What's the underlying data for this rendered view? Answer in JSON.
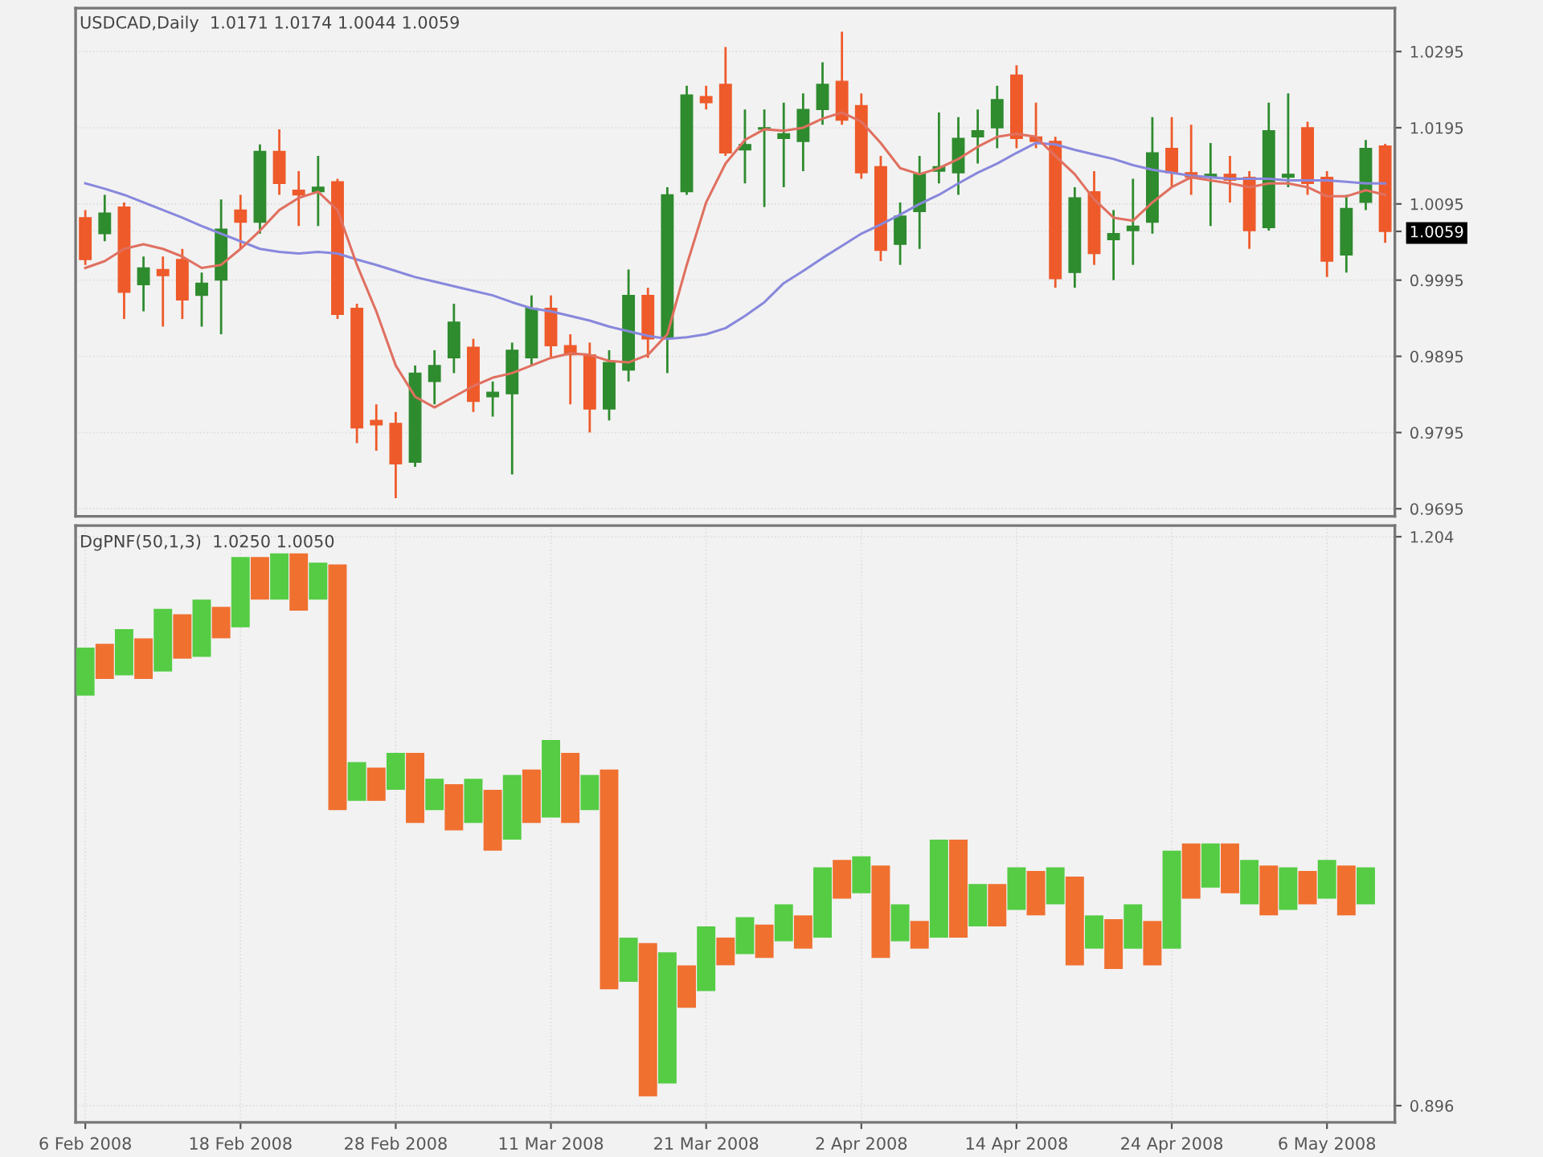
{
  "chart_data": [
    {
      "type": "candlestick",
      "title": "USDCAD,Daily  1.0171 1.0174 1.0044 1.0059",
      "categories": [
        null,
        null,
        null,
        null,
        null,
        null,
        null,
        null,
        null,
        null,
        null,
        null,
        null,
        null,
        null,
        null,
        null,
        null,
        null,
        null,
        null,
        null,
        null,
        null,
        null,
        null,
        null,
        null,
        null,
        null,
        null,
        null,
        null,
        null,
        null,
        null,
        null,
        null,
        null,
        null,
        null,
        null,
        null,
        null,
        null,
        null,
        null,
        null,
        null,
        null,
        null,
        null,
        null,
        null,
        null,
        null,
        null,
        null,
        null,
        null,
        null,
        null,
        null,
        null,
        null,
        null,
        null,
        null
      ],
      "ohlc": [
        [
          1.0077,
          1.0087,
          1.0015,
          1.0022
        ],
        [
          1.0056,
          1.0107,
          1.0046,
          1.0083
        ],
        [
          1.0091,
          1.0097,
          0.9944,
          0.9979
        ],
        [
          0.9989,
          1.0026,
          0.9954,
          1.0011
        ],
        [
          1.0009,
          1.0026,
          0.9934,
          1.0001
        ],
        [
          1.0022,
          1.0036,
          0.9944,
          0.9969
        ],
        [
          0.9975,
          1.0005,
          0.9934,
          0.9991
        ],
        [
          0.9995,
          1.0101,
          0.9924,
          1.0062
        ],
        [
          1.0087,
          1.0107,
          1.0036,
          1.0071
        ],
        [
          1.0071,
          1.0173,
          1.0056,
          1.0164
        ],
        [
          1.0164,
          1.0193,
          1.0107,
          1.0122
        ],
        [
          1.0113,
          1.0138,
          1.0066,
          1.0107
        ],
        [
          1.0111,
          1.0158,
          1.0066,
          1.0117
        ],
        [
          1.0124,
          1.0128,
          0.9944,
          0.995
        ],
        [
          0.9958,
          0.9964,
          0.9781,
          0.9801
        ],
        [
          0.9811,
          0.9832,
          0.9771,
          0.9805
        ],
        [
          0.9807,
          0.9822,
          0.9709,
          0.9754
        ],
        [
          0.9756,
          0.9883,
          0.975,
          0.9873
        ],
        [
          0.9862,
          0.9903,
          0.9832,
          0.9883
        ],
        [
          0.9893,
          0.9964,
          0.9873,
          0.994
        ],
        [
          0.9907,
          0.9918,
          0.9822,
          0.9836
        ],
        [
          0.9842,
          0.9862,
          0.9816,
          0.9848
        ],
        [
          0.9846,
          0.9913,
          0.974,
          0.9903
        ],
        [
          0.9893,
          0.9975,
          0.9883,
          0.9958
        ],
        [
          0.9958,
          0.9975,
          0.9893,
          0.9909
        ],
        [
          0.9909,
          0.9924,
          0.9832,
          0.9897
        ],
        [
          0.9897,
          0.9913,
          0.9795,
          0.9826
        ],
        [
          0.9826,
          0.9903,
          0.9811,
          0.9887
        ],
        [
          0.9877,
          1.0009,
          0.9862,
          0.9975
        ],
        [
          0.9975,
          0.9985,
          0.9893,
          0.9918
        ],
        [
          0.992,
          1.0117,
          0.9873,
          1.0107
        ],
        [
          1.0111,
          1.025,
          1.0107,
          1.0238
        ],
        [
          1.0236,
          1.025,
          1.0219,
          1.0228
        ],
        [
          1.0252,
          1.0301,
          1.0158,
          1.0162
        ],
        [
          1.0166,
          1.0219,
          1.0122,
          1.0173
        ],
        [
          1.0193,
          1.0219,
          1.0091,
          1.0195
        ],
        [
          1.0181,
          1.0228,
          1.0117,
          1.0187
        ],
        [
          1.0177,
          1.024,
          1.0138,
          1.0219
        ],
        [
          1.0219,
          1.0281,
          1.0199,
          1.0252
        ],
        [
          1.0256,
          1.0321,
          1.0199,
          1.0205
        ],
        [
          1.0224,
          1.024,
          1.0128,
          1.0136
        ],
        [
          1.0144,
          1.0158,
          1.002,
          1.0034
        ],
        [
          1.0042,
          1.0097,
          1.0015,
          1.0079
        ],
        [
          1.0085,
          1.0158,
          1.0036,
          1.0134
        ],
        [
          1.0138,
          1.0215,
          1.0122,
          1.0144
        ],
        [
          1.0136,
          1.0209,
          1.0107,
          1.0181
        ],
        [
          1.0183,
          1.0219,
          1.0148,
          1.0191
        ],
        [
          1.0195,
          1.025,
          1.0168,
          1.0232
        ],
        [
          1.0264,
          1.0277,
          1.0168,
          1.0181
        ],
        [
          1.0183,
          1.0228,
          1.0168,
          1.0177
        ],
        [
          1.0177,
          1.0183,
          0.9985,
          0.9997
        ],
        [
          1.0005,
          1.0117,
          0.9985,
          1.0103
        ],
        [
          1.0111,
          1.0138,
          1.0015,
          1.003
        ],
        [
          1.0048,
          1.0087,
          0.9995,
          1.0056
        ],
        [
          1.006,
          1.0128,
          1.0015,
          1.0066
        ],
        [
          1.0071,
          1.0209,
          1.0056,
          1.0162
        ],
        [
          1.0168,
          1.0209,
          1.0117,
          1.0136
        ],
        [
          1.0136,
          1.0199,
          1.0107,
          1.013
        ],
        [
          1.013,
          1.0175,
          1.0066,
          1.0134
        ],
        [
          1.0134,
          1.0158,
          1.0097,
          1.0126
        ],
        [
          1.013,
          1.0138,
          1.0036,
          1.006
        ],
        [
          1.0064,
          1.0228,
          1.006,
          1.0191
        ],
        [
          1.013,
          1.024,
          1.0117,
          1.0134
        ],
        [
          1.0195,
          1.0203,
          1.0107,
          1.0122
        ],
        [
          1.013,
          1.0138,
          0.9999,
          1.002
        ],
        [
          1.0028,
          1.0107,
          1.0005,
          1.0089
        ],
        [
          1.0097,
          1.0179,
          1.0087,
          1.0168
        ],
        [
          1.0171,
          1.0174,
          1.0044,
          1.0059
        ]
      ],
      "colors": [
        "#ee5a2a",
        "#2e8b2e",
        "#ee5a2a",
        "#2e8b2e",
        "#ee5a2a",
        "#ee5a2a",
        "#2e8b2e",
        "#2e8b2e",
        "#ee5a2a",
        "#2e8b2e",
        "#ee5a2a",
        "#ee5a2a",
        "#2e8b2e",
        "#ee5a2a",
        "#ee5a2a",
        "#ee5a2a",
        "#ee5a2a",
        "#2e8b2e",
        "#2e8b2e",
        "#2e8b2e",
        "#ee5a2a",
        "#2e8b2e",
        "#2e8b2e",
        "#2e8b2e",
        "#ee5a2a",
        "#ee5a2a",
        "#ee5a2a",
        "#2e8b2e",
        "#2e8b2e",
        "#ee5a2a",
        "#2e8b2e",
        "#2e8b2e",
        "#ee5a2a",
        "#ee5a2a",
        "#2e8b2e",
        "#2e8b2e",
        "#2e8b2e",
        "#2e8b2e",
        "#2e8b2e",
        "#ee5a2a",
        "#ee5a2a",
        "#ee5a2a",
        "#2e8b2e",
        "#2e8b2e",
        "#2e8b2e",
        "#2e8b2e",
        "#2e8b2e",
        "#2e8b2e",
        "#ee5a2a",
        "#ee5a2a",
        "#ee5a2a",
        "#2e8b2e",
        "#ee5a2a",
        "#2e8b2e",
        "#2e8b2e",
        "#2e8b2e",
        "#ee5a2a",
        "#ee5a2a",
        "#2e8b2e",
        "#ee5a2a",
        "#ee5a2a",
        "#2e8b2e",
        "#2e8b2e",
        "#ee5a2a",
        "#ee5a2a",
        "#2e8b2e",
        "#2e8b2e",
        "#ee5a2a"
      ],
      "series": [
        {
          "type": "line",
          "color": "#8888dd",
          "values": [
            1.0122,
            1.0115,
            1.0107,
            1.0097,
            1.0087,
            1.0077,
            1.0066,
            1.0056,
            1.0046,
            1.0036,
            1.0032,
            1.003,
            1.0032,
            1.003,
            1.0022,
            1.0015,
            1.0007,
            0.9999,
            0.9993,
            0.9987,
            0.9981,
            0.9975,
            0.9966,
            0.9958,
            0.9954,
            0.9948,
            0.9942,
            0.9934,
            0.9928,
            0.9922,
            0.9918,
            0.992,
            0.9924,
            0.9932,
            0.9948,
            0.9966,
            0.9991,
            1.0007,
            1.0024,
            1.004,
            1.0056,
            1.0068,
            1.0081,
            1.0095,
            1.0107,
            1.0122,
            1.0136,
            1.0148,
            1.0162,
            1.0175,
            1.0173,
            1.0166,
            1.016,
            1.0154,
            1.0146,
            1.014,
            1.0136,
            1.0132,
            1.013,
            1.0128,
            1.0128,
            1.0128,
            1.0126,
            1.0126,
            1.0126,
            1.0124,
            1.0122,
            1.0122
          ]
        },
        {
          "type": "line",
          "color": "#e07060",
          "values": [
            1.0011,
            1.002,
            1.0036,
            1.0042,
            1.0036,
            1.0026,
            1.0011,
            1.0015,
            1.0036,
            1.006,
            1.0087,
            1.0103,
            1.0111,
            1.0087,
            1.0015,
            0.9954,
            0.9883,
            0.9842,
            0.9828,
            0.9842,
            0.9856,
            0.9867,
            0.9873,
            0.9883,
            0.9893,
            0.9899,
            0.9897,
            0.9889,
            0.9887,
            0.9897,
            0.9924,
            1.0015,
            1.0097,
            1.0148,
            1.0179,
            1.0193,
            1.0191,
            1.0195,
            1.0207,
            1.0215,
            1.0203,
            1.0175,
            1.0142,
            1.0134,
            1.0142,
            1.0154,
            1.017,
            1.0183,
            1.0187,
            1.0183,
            1.0158,
            1.0134,
            1.0101,
            1.0077,
            1.0073,
            1.0097,
            1.0117,
            1.013,
            1.0126,
            1.0122,
            1.0117,
            1.0122,
            1.0122,
            1.0117,
            1.0105,
            1.0105,
            1.0113,
            1.0107
          ]
        }
      ],
      "ylim": [
        0.9685,
        1.0352
      ],
      "yticks": [
        0.9695,
        0.9795,
        0.9895,
        0.9995,
        {
          "value": 1.0059,
          "label": "1.0059"
        },
        1.0095,
        1.0195,
        1.0295
      ],
      "tick_labels": "y",
      "grid": true
    },
    {
      "type": "bar",
      "title": "DgPNF(50,1,3)  1.0250 1.0050",
      "categories": [
        "6 Feb 2008",
        null,
        null,
        null,
        null,
        null,
        null,
        null,
        "18 Feb 2008",
        null,
        null,
        null,
        null,
        null,
        null,
        null,
        "28 Feb 2008",
        null,
        null,
        null,
        null,
        null,
        null,
        null,
        "11 Mar 2008",
        null,
        null,
        null,
        null,
        null,
        null,
        null,
        "21 Mar 2008",
        null,
        null,
        null,
        null,
        null,
        null,
        null,
        "2 Apr 2008",
        null,
        null,
        null,
        null,
        null,
        null,
        null,
        "14 Apr 2008",
        null,
        null,
        null,
        null,
        null,
        null,
        null,
        "24 Apr 2008",
        null,
        null,
        null,
        null,
        null,
        null,
        null,
        "6 May 2008",
        null,
        null,
        null
      ],
      "base": [
        1.118,
        1.127,
        1.129,
        1.127,
        1.131,
        1.138,
        1.139,
        1.149,
        1.155,
        1.17,
        1.17,
        1.164,
        1.17,
        1.056,
        1.061,
        1.061,
        1.067,
        1.049,
        1.056,
        1.045,
        1.049,
        1.034,
        1.04,
        1.049,
        1.052,
        1.049,
        1.056,
        0.959,
        0.963,
        0.901,
        0.908,
        0.949,
        0.958,
        0.972,
        0.978,
        0.976,
        0.985,
        0.981,
        0.987,
        1.008,
        1.011,
        0.976,
        0.985,
        0.981,
        0.987,
        0.987,
        0.993,
        0.993,
        1.002,
        0.999,
        1.005,
        0.972,
        0.981,
        0.97,
        0.981,
        0.972,
        0.981,
        1.008,
        1.014,
        1.011,
        1.005,
        0.999,
        1.002,
        1.005,
        1.008,
        0.999,
        1.005,
        null
      ],
      "values": [
        0.026,
        0.019,
        0.025,
        0.022,
        0.034,
        0.024,
        0.031,
        0.017,
        0.038,
        0.023,
        0.025,
        0.031,
        0.02,
        0.133,
        0.021,
        0.018,
        0.02,
        0.038,
        0.017,
        0.025,
        0.024,
        0.033,
        0.035,
        0.029,
        0.042,
        0.038,
        0.019,
        0.119,
        0.024,
        0.083,
        0.071,
        0.023,
        0.035,
        0.015,
        0.02,
        0.018,
        0.02,
        0.018,
        0.038,
        0.021,
        0.02,
        0.05,
        0.02,
        0.015,
        0.053,
        0.053,
        0.023,
        0.023,
        0.023,
        0.024,
        0.02,
        0.048,
        0.018,
        0.027,
        0.024,
        0.024,
        0.053,
        0.03,
        0.024,
        0.027,
        0.024,
        0.027,
        0.023,
        0.018,
        0.021,
        0.027,
        0.02,
        null
      ],
      "colors": [
        "#55cc44",
        "#f07030",
        "#55cc44",
        "#f07030",
        "#55cc44",
        "#f07030",
        "#55cc44",
        "#f07030",
        "#55cc44",
        "#f07030",
        "#55cc44",
        "#f07030",
        "#55cc44",
        "#f07030",
        "#55cc44",
        "#f07030",
        "#55cc44",
        "#f07030",
        "#55cc44",
        "#f07030",
        "#55cc44",
        "#f07030",
        "#55cc44",
        "#f07030",
        "#55cc44",
        "#f07030",
        "#55cc44",
        "#f07030",
        "#55cc44",
        "#f07030",
        "#55cc44",
        "#f07030",
        "#55cc44",
        "#f07030",
        "#55cc44",
        "#f07030",
        "#55cc44",
        "#f07030",
        "#55cc44",
        "#f07030",
        "#55cc44",
        "#f07030",
        "#55cc44",
        "#f07030",
        "#55cc44",
        "#f07030",
        "#55cc44",
        "#f07030",
        "#55cc44",
        "#f07030",
        "#55cc44",
        "#f07030",
        "#55cc44",
        "#f07030",
        "#55cc44",
        "#f07030",
        "#55cc44",
        "#f07030",
        "#55cc44",
        "#f07030",
        "#55cc44",
        "#f07030",
        "#55cc44",
        "#f07030",
        "#55cc44",
        "#f07030",
        "#55cc44",
        "#f07030"
      ],
      "ylim": [
        0.887,
        1.21
      ],
      "yticks": [
        0.896,
        1.204
      ],
      "grid": true
    }
  ]
}
